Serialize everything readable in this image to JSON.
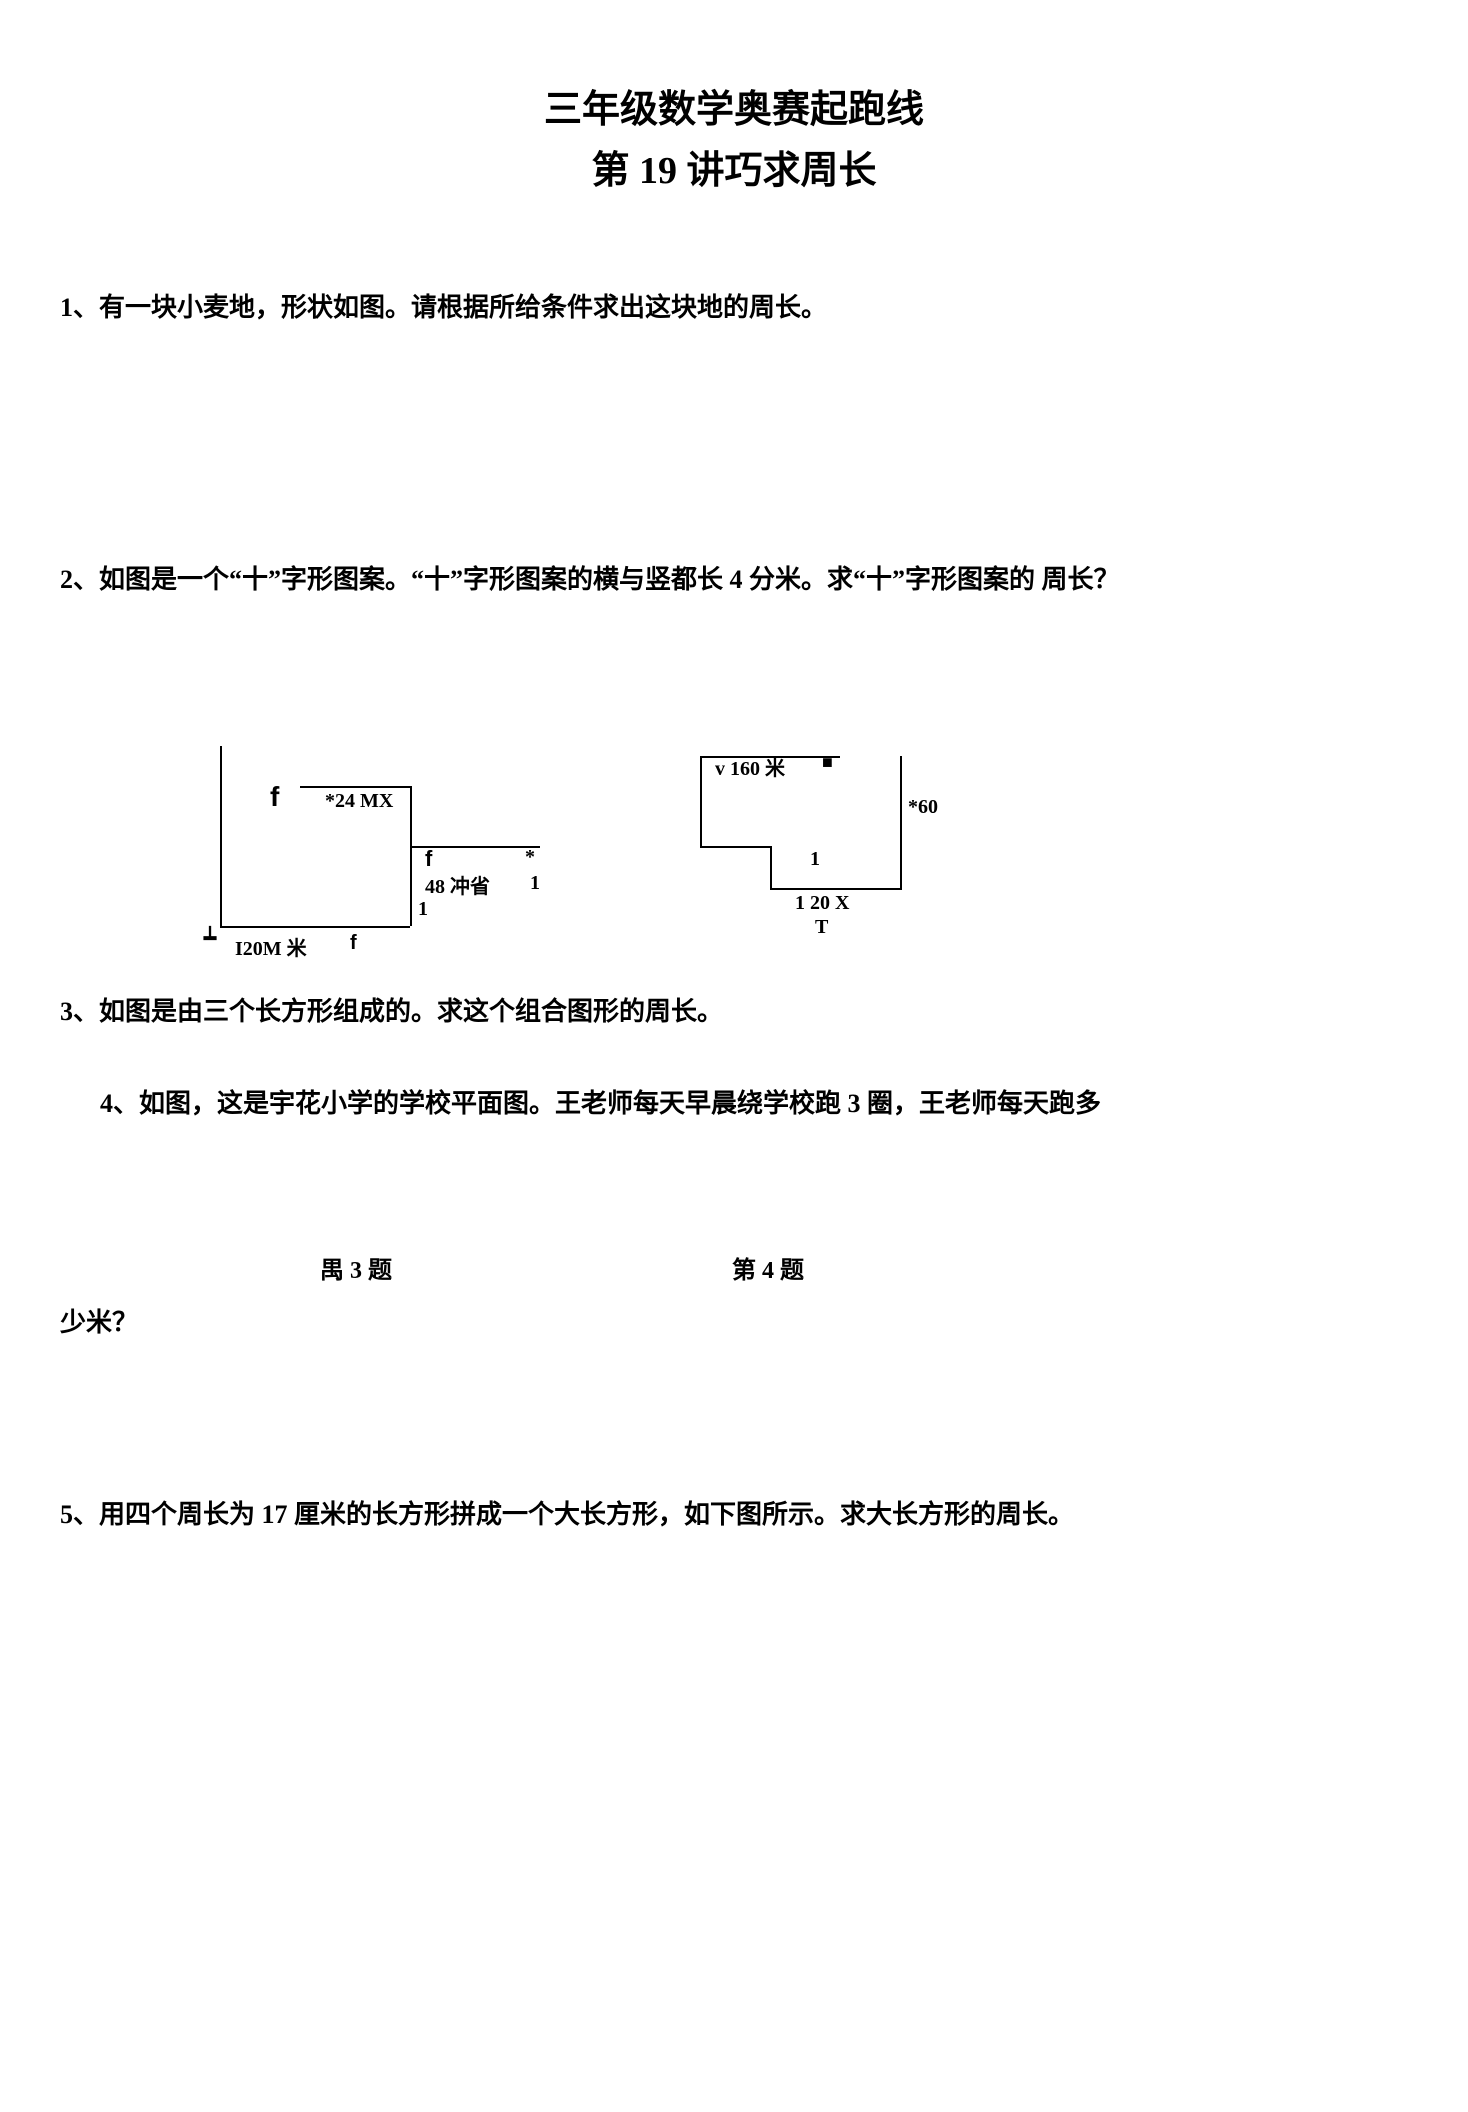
{
  "title": {
    "line1": "三年级数学奥赛起跑线",
    "line2": "第 19 讲巧求周长"
  },
  "questions": {
    "q1": "1、有一块小麦地，形状如图。请根据所给条件求出这块地的周长。",
    "q2": "2、如图是一个“十”字形图案。“十”字形图案的横与竖都长 4 分米。求“十”字形图案的 周长？",
    "q3": "3、如图是由三个长方形组成的。求这个组合图形的周长。",
    "q4": "4、如图，这是宇花小学的学校平面图。王老师每天早晨绕学校跑 3 圈，王老师每天跑多",
    "q4_trail": "少米？",
    "q5": "5、用四个周长为 17 厘米的长方形拼成一个大长方形，如下图所示。求大长方形的周长。"
  },
  "diagram_left": {
    "f1": "f",
    "t1": "*24 MX",
    "f2": "f",
    "star": "*",
    "t2": "48 冲省",
    "one1": "1",
    "one2": "1",
    "end": "┷",
    "btm": "I20M 米",
    "f3": "f"
  },
  "diagram_right": {
    "t1": "v 160 米",
    "sq": "■",
    "t2": "*60",
    "one": "1",
    "btm": "1 20 X",
    "T": "T"
  },
  "captions": {
    "left": "禺 3 题",
    "right": "第 4 题"
  },
  "styling": {
    "page_bg": "#ffffff",
    "text_color": "#000000",
    "title_fontsize": 38,
    "body_fontsize": 26,
    "diagram_fontsize": 20,
    "line_weight": 2
  }
}
